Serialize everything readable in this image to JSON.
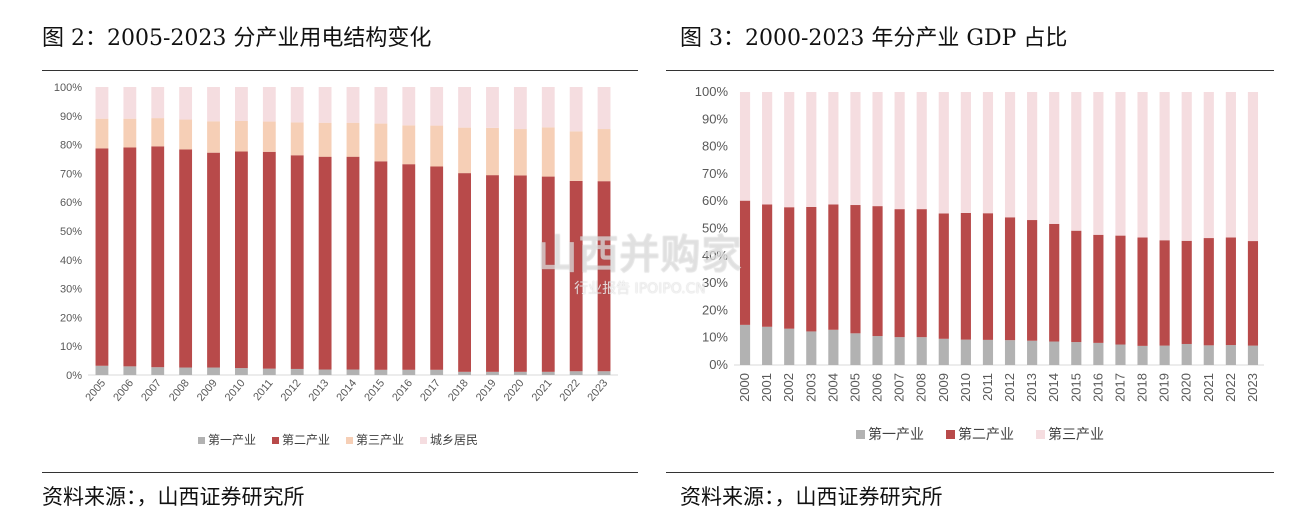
{
  "left": {
    "title": "图 2：2005-2023 分产业用电结构变化",
    "source": "资料来源：，山西证券研究所"
  },
  "right": {
    "title": "图 3：2000-2023 年分产业 GDP 占比",
    "source": "资料来源：，山西证券研究所"
  },
  "watermark": {
    "main": "山西并购家",
    "sub": "行业报告 IPOIPO.CN"
  },
  "chart_data": [
    {
      "type": "bar",
      "stacked": true,
      "title": "图 2：2005-2023 分产业用电结构变化",
      "categories": [
        "2005",
        "2006",
        "2007",
        "2008",
        "2009",
        "2010",
        "2011",
        "2012",
        "2013",
        "2014",
        "2015",
        "2016",
        "2017",
        "2018",
        "2019",
        "2020",
        "2021",
        "2022",
        "2023"
      ],
      "y_ticks": [
        "0%",
        "10%",
        "20%",
        "30%",
        "40%",
        "50%",
        "60%",
        "70%",
        "80%",
        "90%",
        "100%"
      ],
      "ylim": [
        0,
        100
      ],
      "legend_position": "bottom",
      "colors": [
        "#b2b2b2",
        "#b84a4a",
        "#f6cfb6",
        "#f5dde0"
      ],
      "series": [
        {
          "name": "第一产业",
          "values": [
            3.2,
            3.0,
            2.7,
            2.6,
            2.6,
            2.4,
            2.2,
            2.1,
            1.9,
            1.9,
            1.8,
            1.8,
            1.8,
            1.1,
            1.1,
            1.1,
            1.1,
            1.3,
            1.3
          ]
        },
        {
          "name": "第二产业",
          "values": [
            75.5,
            76.0,
            76.7,
            75.7,
            74.6,
            75.2,
            75.3,
            74.2,
            73.9,
            73.9,
            72.4,
            71.4,
            70.6,
            69.0,
            68.3,
            68.2,
            67.8,
            66.1,
            66.0
          ]
        },
        {
          "name": "第三产业",
          "values": [
            10.3,
            10.0,
            9.8,
            10.4,
            10.9,
            10.6,
            10.5,
            11.4,
            11.8,
            11.8,
            13.1,
            13.5,
            14.2,
            15.8,
            16.4,
            16.1,
            17.1,
            17.2,
            18.1
          ]
        },
        {
          "name": "城乡居民",
          "values": [
            11.0,
            11.0,
            10.8,
            11.3,
            11.9,
            11.8,
            12.0,
            12.3,
            12.4,
            12.4,
            12.7,
            13.3,
            13.4,
            14.1,
            14.2,
            14.6,
            14.0,
            15.4,
            14.6
          ]
        }
      ]
    },
    {
      "type": "bar",
      "stacked": true,
      "title": "图 3：2000-2023 年分产业 GDP 占比",
      "categories": [
        "2000",
        "2001",
        "2002",
        "2003",
        "2004",
        "2005",
        "2006",
        "2007",
        "2008",
        "2009",
        "2010",
        "2011",
        "2012",
        "2013",
        "2014",
        "2015",
        "2016",
        "2017",
        "2018",
        "2019",
        "2020",
        "2021",
        "2022",
        "2023"
      ],
      "y_ticks": [
        "0%",
        "10%",
        "20%",
        "30%",
        "40%",
        "50%",
        "60%",
        "70%",
        "80%",
        "90%",
        "100%"
      ],
      "ylim": [
        0,
        100
      ],
      "legend_position": "bottom",
      "colors": [
        "#b2b2b2",
        "#b84a4a",
        "#f5dde0"
      ],
      "series": [
        {
          "name": "第一产业",
          "values": [
            14.7,
            14.0,
            13.3,
            12.3,
            12.9,
            11.6,
            10.6,
            10.2,
            10.2,
            9.6,
            9.3,
            9.2,
            9.1,
            8.9,
            8.6,
            8.4,
            8.1,
            7.5,
            7.0,
            7.1,
            7.7,
            7.2,
            7.3,
            7.1
          ]
        },
        {
          "name": "第二产业",
          "values": [
            45.5,
            44.8,
            44.5,
            45.6,
            45.9,
            47.0,
            47.6,
            46.9,
            46.9,
            45.9,
            46.4,
            46.4,
            45.0,
            44.2,
            43.1,
            40.8,
            39.6,
            39.9,
            39.7,
            38.6,
            37.8,
            39.3,
            39.4,
            38.3
          ]
        },
        {
          "name": "第三产业",
          "values": [
            39.8,
            41.2,
            42.2,
            42.1,
            41.2,
            41.4,
            41.8,
            42.9,
            42.9,
            44.5,
            44.3,
            44.4,
            45.9,
            46.9,
            48.3,
            50.8,
            52.3,
            52.6,
            53.3,
            54.3,
            54.5,
            53.5,
            53.3,
            54.6
          ]
        }
      ]
    }
  ]
}
